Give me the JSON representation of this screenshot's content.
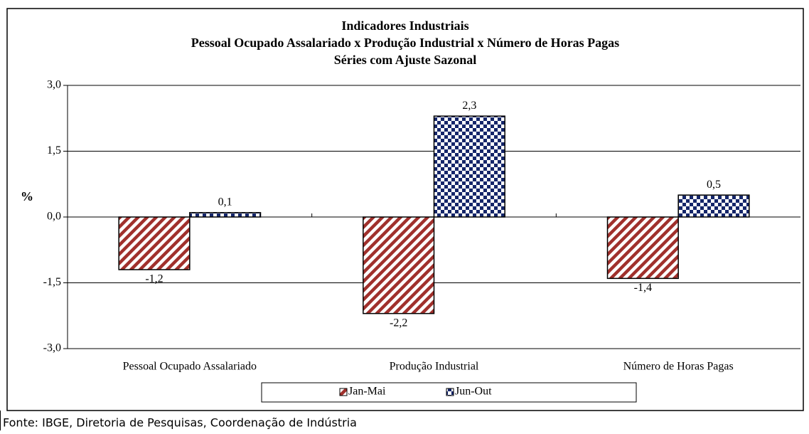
{
  "chart_data": {
    "type": "bar",
    "title": "Indicadores Industriais",
    "subtitle": [
      "Pessoal Ocupado Assalariado x Produção Industrial x Número de Horas Pagas",
      "Séries com Ajuste Sazonal"
    ],
    "y_label": "%",
    "categories": [
      "Pessoal Ocupado Assalariado",
      "Produção Industrial",
      "Número de Horas Pagas"
    ],
    "series": [
      {
        "name": "Jan-Mai",
        "color": "#a0302c",
        "pattern": "diagonal",
        "values": [
          -1.2,
          -2.2,
          -1.4
        ],
        "value_labels": [
          "-1,2",
          "-2,2",
          "-1,4"
        ]
      },
      {
        "name": "Jun-Out",
        "color": "#15266a",
        "pattern": "checker",
        "values": [
          0.1,
          2.3,
          0.5
        ],
        "value_labels": [
          "0,1",
          "2,3",
          "0,5"
        ]
      }
    ],
    "ylim": [
      -3,
      3
    ],
    "yticks": [
      {
        "value": -3,
        "label": "-3,0"
      },
      {
        "value": -1.5,
        "label": "-1,5"
      },
      {
        "value": 0,
        "label": "0,0"
      },
      {
        "value": 1.5,
        "label": "1,5"
      },
      {
        "value": 3,
        "label": "3,0"
      }
    ],
    "grid": true,
    "legend": "bottom",
    "source": "Fonte: IBGE, Diretoria de Pesquisas, Coordenação de Indústria"
  }
}
